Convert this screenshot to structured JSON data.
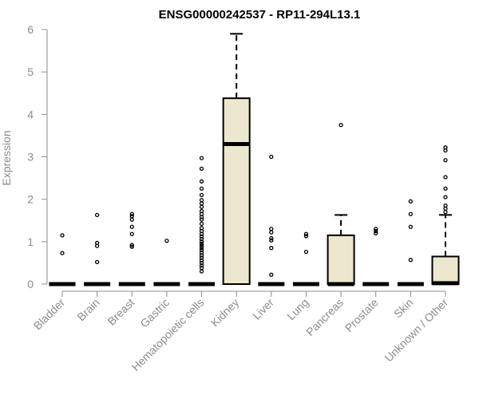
{
  "chart_data": {
    "type": "boxplot",
    "title": "ENSG00000242537 - RP11-294L13.1",
    "xlabel": "",
    "ylabel": "Expression",
    "ylim": [
      0,
      6
    ],
    "yticks": [
      "0",
      "1",
      "2",
      "3",
      "4",
      "5",
      "6"
    ],
    "grid": false,
    "colors": {
      "box_fill": "#ede7cf",
      "stroke": "#000000",
      "axis": "#8c8c8c"
    },
    "categories": [
      "Bladder",
      "Brain",
      "Breast",
      "Gastric",
      "Hematopoietic cells",
      "Kidney",
      "Liver",
      "Lung",
      "Pancreas",
      "Prostate",
      "Skin",
      "Unknown / Other"
    ],
    "boxes": [
      {
        "min": 0,
        "q1": 0,
        "median": 0,
        "q3": 0,
        "max": 0,
        "outliers": [
          1.15,
          0.73
        ]
      },
      {
        "min": 0,
        "q1": 0,
        "median": 0,
        "q3": 0,
        "max": 0,
        "outliers": [
          1.63,
          0.97,
          0.9,
          0.52
        ]
      },
      {
        "min": 0,
        "q1": 0,
        "median": 0,
        "q3": 0,
        "max": 0,
        "outliers": [
          1.65,
          1.6,
          1.52,
          1.35,
          1.18,
          0.92,
          0.88
        ]
      },
      {
        "min": 0,
        "q1": 0,
        "median": 0,
        "q3": 0,
        "max": 0,
        "outliers": [
          1.02
        ]
      },
      {
        "min": 0,
        "q1": 0,
        "median": 0,
        "q3": 0,
        "max": 0,
        "outliers": [
          2.97,
          2.72,
          2.42,
          2.25,
          2.1,
          1.98,
          1.9,
          1.82,
          1.72,
          1.65,
          1.58,
          1.52,
          1.42,
          1.32,
          1.25,
          1.18,
          1.12,
          1.06,
          1.0,
          0.95,
          0.9,
          0.85,
          0.8,
          0.74,
          0.68,
          0.62,
          0.56,
          0.5,
          0.44,
          0.38,
          0.3
        ]
      },
      {
        "min": 0,
        "q1": 0,
        "median": 3.3,
        "q3": 4.38,
        "max": 5.9,
        "outliers": []
      },
      {
        "min": 0,
        "q1": 0,
        "median": 0,
        "q3": 0,
        "max": 0,
        "outliers": [
          3.0,
          1.3,
          1.22,
          1.08,
          1.03,
          0.85,
          0.22
        ]
      },
      {
        "min": 0,
        "q1": 0,
        "median": 0,
        "q3": 0,
        "max": 0,
        "outliers": [
          1.18,
          1.13,
          0.76
        ]
      },
      {
        "min": 0,
        "q1": 0,
        "median": 0,
        "q3": 1.15,
        "max": 1.63,
        "outliers": [
          3.75
        ]
      },
      {
        "min": 0,
        "q1": 0,
        "median": 0,
        "q3": 0,
        "max": 0,
        "outliers": [
          1.3,
          1.25,
          1.2
        ]
      },
      {
        "min": 0,
        "q1": 0,
        "median": 0,
        "q3": 0,
        "max": 0,
        "outliers": [
          1.95,
          1.65,
          1.35,
          0.57
        ]
      },
      {
        "min": 0,
        "q1": 0,
        "median": 0.02,
        "q3": 0.65,
        "max": 1.63,
        "outliers": [
          3.22,
          3.15,
          2.92,
          2.52,
          2.25,
          2.05,
          1.85,
          1.78,
          1.7
        ]
      }
    ]
  }
}
